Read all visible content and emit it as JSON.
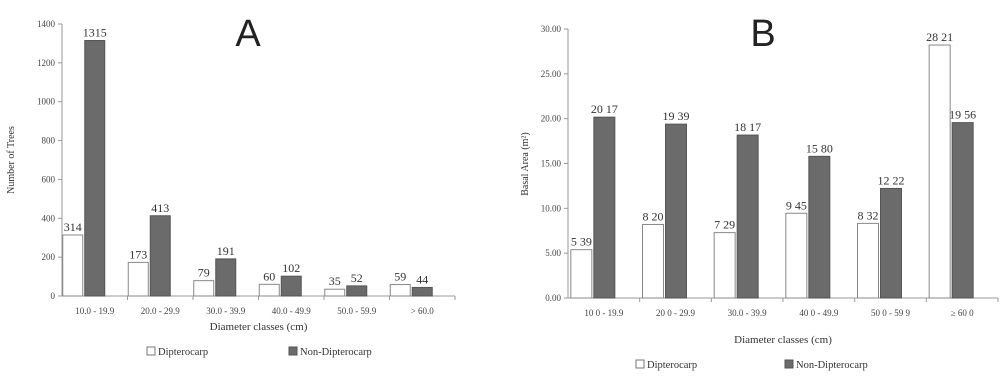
{
  "chart_data": [
    {
      "type": "bar",
      "panel_label": "A",
      "categories": [
        "10.0 - 19.9",
        "20.0 - 29.9",
        "30.0 - 39.9",
        "40.0 - 49.9",
        "50.0 - 59.9",
        "> 60.0"
      ],
      "series": [
        {
          "name": "Dipterocarp",
          "values": [
            314,
            173,
            79,
            60,
            35,
            59
          ],
          "labels": [
            "314",
            "173",
            "79",
            "60",
            "35",
            "59"
          ]
        },
        {
          "name": "Non-Dipterocarp",
          "values": [
            1315,
            413,
            191,
            102,
            52,
            44
          ],
          "labels": [
            "1315",
            "413",
            "191",
            "102",
            "52",
            "44"
          ]
        }
      ],
      "xlabel": "Diameter classes (cm)",
      "ylabel": "Number of Trees",
      "ylim": [
        0,
        1400
      ],
      "yticks": [
        "0",
        "200",
        "400",
        "600",
        "800",
        "1000",
        "1200",
        "1400"
      ],
      "grid": false,
      "legend_position": "bottom"
    },
    {
      "type": "bar",
      "panel_label": "B",
      "categories": [
        "10 0 - 19.9",
        "20 0 - 29.9",
        "30.0 - 39.9",
        "40 0 - 49.9",
        "50 0 - 59 9",
        "≥ 60 0"
      ],
      "series": [
        {
          "name": "Dipterocarp",
          "values": [
            5.39,
            8.2,
            7.29,
            9.45,
            8.32,
            28.21
          ],
          "labels": [
            "5 39",
            "8 20",
            "7 29",
            "9 45",
            "8 32",
            "28 21"
          ]
        },
        {
          "name": "Non-Dipterocarp",
          "values": [
            20.17,
            19.39,
            18.17,
            15.8,
            12.22,
            19.56
          ],
          "labels": [
            "20 17",
            "19 39",
            "18 17",
            "15 80",
            "12 22",
            "19 56"
          ]
        }
      ],
      "xlabel": "Diameter classes (cm)",
      "ylabel": "Basal Area (m²)",
      "ylim": [
        0,
        30
      ],
      "yticks": [
        "0.00",
        "5.00",
        "10.00",
        "15.00",
        "20.00",
        "25.00",
        "30.00"
      ],
      "grid": false,
      "legend_position": "bottom"
    }
  ],
  "colors": {
    "dipterocarp_fill": "#ffffff",
    "non_dipterocarp_fill": "#6b6b6b",
    "axis": "#999999"
  }
}
